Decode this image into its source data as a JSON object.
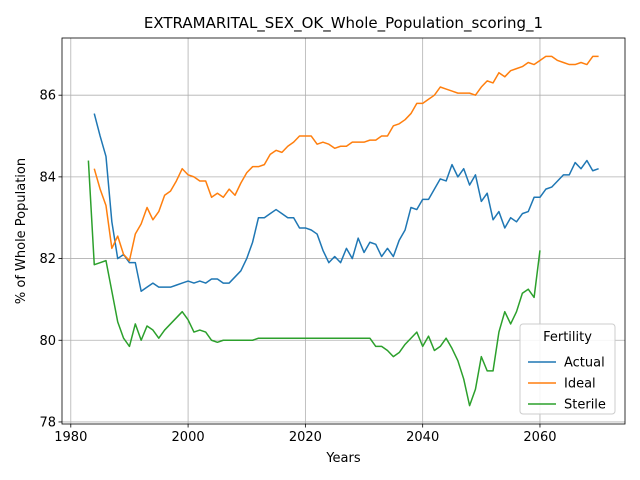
{
  "chart_data": {
    "type": "line",
    "title": "EXTRAMARITAL_SEX_OK_Whole_Population_scoring_1",
    "xlabel": "Years",
    "ylabel": "% of Whole Population",
    "xlim": [
      1978.5,
      2074.5
    ],
    "ylim": [
      77.95,
      87.4
    ],
    "xticks": [
      1980,
      2000,
      2020,
      2040,
      2060
    ],
    "yticks": [
      78,
      80,
      82,
      84,
      86
    ],
    "grid": true,
    "legend": {
      "title": "Fertility",
      "position": "lower-right"
    },
    "series": [
      {
        "name": "Actual",
        "color": "#1f77b4",
        "x": [
          1984,
          1985,
          1986,
          1987,
          1988,
          1989,
          1990,
          1991,
          1992,
          1993,
          1994,
          1995,
          1996,
          1997,
          1998,
          1999,
          2000,
          2001,
          2002,
          2003,
          2004,
          2005,
          2006,
          2007,
          2008,
          2009,
          2010,
          2011,
          2012,
          2013,
          2014,
          2015,
          2016,
          2017,
          2018,
          2019,
          2020,
          2021,
          2022,
          2023,
          2024,
          2025,
          2026,
          2027,
          2028,
          2029,
          2030,
          2031,
          2032,
          2033,
          2034,
          2035,
          2036,
          2037,
          2038,
          2039,
          2040,
          2041,
          2042,
          2043,
          2044,
          2045,
          2046,
          2047,
          2048,
          2049,
          2050,
          2051,
          2052,
          2053,
          2054,
          2055,
          2056,
          2057,
          2058,
          2059,
          2060,
          2061,
          2062,
          2063,
          2064,
          2065,
          2066,
          2067,
          2068,
          2069,
          2070
        ],
        "values": [
          85.55,
          85.0,
          84.5,
          82.9,
          82.0,
          82.1,
          81.9,
          81.9,
          81.2,
          81.3,
          81.4,
          81.3,
          81.3,
          81.3,
          81.35,
          81.4,
          81.45,
          81.4,
          81.45,
          81.4,
          81.5,
          81.5,
          81.4,
          81.4,
          81.55,
          81.7,
          82.0,
          82.4,
          83.0,
          83.0,
          83.1,
          83.2,
          83.1,
          83.0,
          83.0,
          82.75,
          82.75,
          82.7,
          82.6,
          82.2,
          81.9,
          82.05,
          81.9,
          82.25,
          82.0,
          82.5,
          82.15,
          82.4,
          82.35,
          82.05,
          82.25,
          82.05,
          82.45,
          82.7,
          83.25,
          83.2,
          83.45,
          83.45,
          83.7,
          83.95,
          83.9,
          84.3,
          84.0,
          84.2,
          83.8,
          84.05,
          83.4,
          83.6,
          82.95,
          83.15,
          82.75,
          83.0,
          82.9,
          83.1,
          83.15,
          83.5,
          83.5,
          83.7,
          83.75,
          83.9,
          84.05,
          84.05,
          84.35,
          84.2,
          84.4,
          84.15,
          84.2
        ]
      },
      {
        "name": "Ideal",
        "color": "#ff7f0e",
        "x": [
          1984,
          1985,
          1986,
          1987,
          1988,
          1989,
          1990,
          1991,
          1992,
          1993,
          1994,
          1995,
          1996,
          1997,
          1998,
          1999,
          2000,
          2001,
          2002,
          2003,
          2004,
          2005,
          2006,
          2007,
          2008,
          2009,
          2010,
          2011,
          2012,
          2013,
          2014,
          2015,
          2016,
          2017,
          2018,
          2019,
          2020,
          2021,
          2022,
          2023,
          2024,
          2025,
          2026,
          2027,
          2028,
          2029,
          2030,
          2031,
          2032,
          2033,
          2034,
          2035,
          2036,
          2037,
          2038,
          2039,
          2040,
          2041,
          2042,
          2043,
          2044,
          2045,
          2046,
          2047,
          2048,
          2049,
          2050,
          2051,
          2052,
          2053,
          2054,
          2055,
          2056,
          2057,
          2058,
          2059,
          2060,
          2061,
          2062,
          2063,
          2064,
          2065,
          2066,
          2067,
          2068,
          2069,
          2070
        ],
        "values": [
          84.2,
          83.7,
          83.3,
          82.25,
          82.55,
          82.1,
          81.95,
          82.6,
          82.85,
          83.25,
          82.95,
          83.15,
          83.55,
          83.65,
          83.9,
          84.2,
          84.05,
          84.0,
          83.9,
          83.9,
          83.5,
          83.6,
          83.5,
          83.7,
          83.55,
          83.85,
          84.1,
          84.25,
          84.25,
          84.3,
          84.55,
          84.65,
          84.6,
          84.75,
          84.85,
          85.0,
          85.0,
          85.0,
          84.8,
          84.85,
          84.8,
          84.7,
          84.75,
          84.75,
          84.85,
          84.85,
          84.85,
          84.9,
          84.9,
          85.0,
          85.0,
          85.25,
          85.3,
          85.4,
          85.55,
          85.8,
          85.8,
          85.9,
          86.0,
          86.2,
          86.15,
          86.1,
          86.05,
          86.05,
          86.05,
          86.0,
          86.2,
          86.35,
          86.3,
          86.55,
          86.45,
          86.6,
          86.65,
          86.7,
          86.8,
          86.75,
          86.85,
          86.95,
          86.95,
          86.85,
          86.8,
          86.75,
          86.75,
          86.8,
          86.75,
          86.95,
          86.95
        ]
      },
      {
        "name": "Sterile",
        "color": "#2ca02c",
        "x": [
          1983,
          1984,
          1985,
          1986,
          1987,
          1988,
          1989,
          1990,
          1991,
          1992,
          1993,
          1994,
          1995,
          1996,
          1997,
          1998,
          1999,
          2000,
          2001,
          2002,
          2003,
          2004,
          2005,
          2006,
          2007,
          2008,
          2009,
          2010,
          2011,
          2012,
          2013,
          2014,
          2015,
          2016,
          2017,
          2018,
          2019,
          2020,
          2021,
          2022,
          2023,
          2024,
          2025,
          2026,
          2027,
          2028,
          2029,
          2030,
          2031,
          2032,
          2033,
          2034,
          2035,
          2036,
          2037,
          2038,
          2039,
          2040,
          2041,
          2042,
          2043,
          2044,
          2045,
          2046,
          2047,
          2048,
          2049,
          2050,
          2051,
          2052,
          2053,
          2054,
          2055,
          2056,
          2057,
          2058,
          2059,
          2060
        ],
        "values": [
          84.4,
          81.85,
          81.9,
          81.95,
          81.2,
          80.45,
          80.05,
          79.85,
          80.4,
          80.0,
          80.35,
          80.25,
          80.05,
          80.25,
          80.4,
          80.55,
          80.7,
          80.5,
          80.2,
          80.25,
          80.2,
          80.0,
          79.95,
          80.0,
          80.0,
          80.0,
          80.0,
          80.0,
          80.0,
          80.05,
          80.05,
          80.05,
          80.05,
          80.05,
          80.05,
          80.05,
          80.05,
          80.05,
          80.05,
          80.05,
          80.05,
          80.05,
          80.05,
          80.05,
          80.05,
          80.05,
          80.05,
          80.05,
          80.05,
          79.85,
          79.85,
          79.75,
          79.6,
          79.7,
          79.9,
          80.05,
          80.2,
          79.85,
          80.1,
          79.75,
          79.85,
          80.05,
          79.8,
          79.5,
          79.05,
          78.4,
          78.8,
          79.6,
          79.25,
          79.25,
          80.2,
          80.7,
          80.4,
          80.7,
          81.15,
          81.25,
          81.05,
          82.2
        ]
      }
    ]
  }
}
